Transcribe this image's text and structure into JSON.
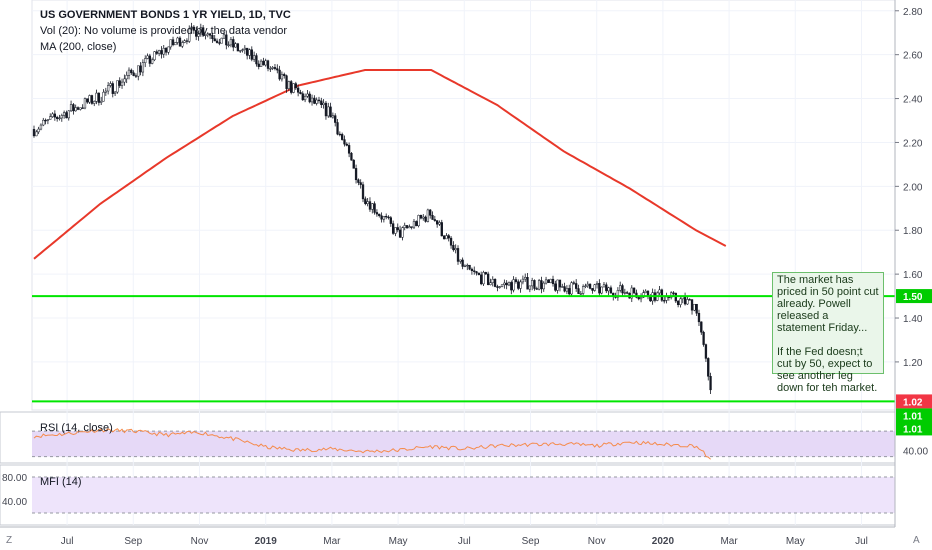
{
  "chart_data": [
    {
      "type": "candlestick",
      "title": "US GOVERNMENT BONDS 1 YR YIELD, 1D, TVC",
      "indicators": [
        "Vol (20): No volume is provided by the data vendor",
        "MA (200, close)"
      ],
      "x_ticks": [
        "Jul",
        "Sep",
        "Nov",
        "2019",
        "Mar",
        "May",
        "Jul",
        "Sep",
        "Nov",
        "2020",
        "Mar",
        "May",
        "Jul",
        "Aug"
      ],
      "y_ticks": [
        "2.80",
        "2.60",
        "2.40",
        "2.20",
        "2.00",
        "1.80",
        "1.60",
        "1.40",
        "1.20"
      ],
      "ylim": [
        0.99,
        2.84
      ],
      "price_series": {
        "name": "US GOVERNMENT BONDS 1 YR YIELD",
        "months": [
          0.0,
          1.0,
          2.0,
          3.0,
          4.0,
          5.0,
          6.0,
          7.0,
          8.0,
          9.0,
          10.0,
          11.0,
          12.0,
          13.0,
          14.0,
          15.0,
          16.0,
          17.0,
          18.0,
          19.0,
          20.0,
          20.5
        ],
        "close": [
          2.26,
          2.34,
          2.41,
          2.52,
          2.63,
          2.72,
          2.64,
          2.55,
          2.42,
          2.33,
          1.95,
          1.78,
          1.88,
          1.62,
          1.55,
          1.56,
          1.54,
          1.53,
          1.52,
          1.5,
          1.46,
          1.02
        ]
      },
      "ma_series": {
        "name": "MA (200, close)",
        "months": [
          0.0,
          2.0,
          4.0,
          6.0,
          8.0,
          10.0,
          12.0,
          14.0,
          16.0,
          18.0,
          20.0,
          21.0
        ],
        "values": [
          1.67,
          1.92,
          2.13,
          2.32,
          2.46,
          2.53,
          2.53,
          2.37,
          2.16,
          1.99,
          1.8,
          1.72
        ]
      },
      "horizontal_lines": [
        {
          "value": 1.5,
          "label": "1.50",
          "color": "#00e600"
        },
        {
          "value": 1.02,
          "label": "1.02",
          "color": "#00e600"
        }
      ],
      "price_labels": [
        {
          "text": "1.50",
          "color": "#00cc00"
        },
        {
          "text": "1.02",
          "color": "#f23645"
        },
        {
          "text": "1.01",
          "color": "#00cc00"
        },
        {
          "text": "1.01",
          "color": "#00cc00"
        }
      ]
    },
    {
      "type": "line",
      "title": "RSI (14, close)",
      "y_ticks": [
        "80.00",
        "40.00"
      ],
      "ylim": [
        20,
        100
      ],
      "bands": [
        70,
        30
      ],
      "series": [
        {
          "name": "RSI (14, close)",
          "months": [
            0,
            1,
            2,
            3,
            4,
            5,
            6,
            7,
            8,
            9,
            10,
            11,
            12,
            13,
            14,
            15,
            16,
            17,
            18,
            19,
            20,
            20.5
          ],
          "values": [
            62,
            66,
            72,
            70,
            64,
            68,
            58,
            45,
            40,
            42,
            38,
            40,
            46,
            42,
            47,
            49,
            50,
            47,
            53,
            49,
            47,
            23
          ]
        }
      ]
    },
    {
      "type": "line",
      "title": "MFI (14)",
      "y_ticks": [
        "80.00",
        "40.00"
      ],
      "ylim": [
        0,
        100
      ]
    }
  ],
  "note": {
    "text": "The market has priced in 50 point cut already. Powell released a statement Friday...\n\nIf the Fed doesn;t cut by 50, expect to see another leg down for teh market."
  },
  "corners": {
    "left": "Z",
    "right": "A"
  },
  "colors": {
    "up": "#ffffff",
    "down": "#131722",
    "ma": "#e8382a",
    "level": "#00e600",
    "rsi": "#f58b4c",
    "rsi_band": "#e6d9f7",
    "mfi_band": "#eee4fb"
  }
}
